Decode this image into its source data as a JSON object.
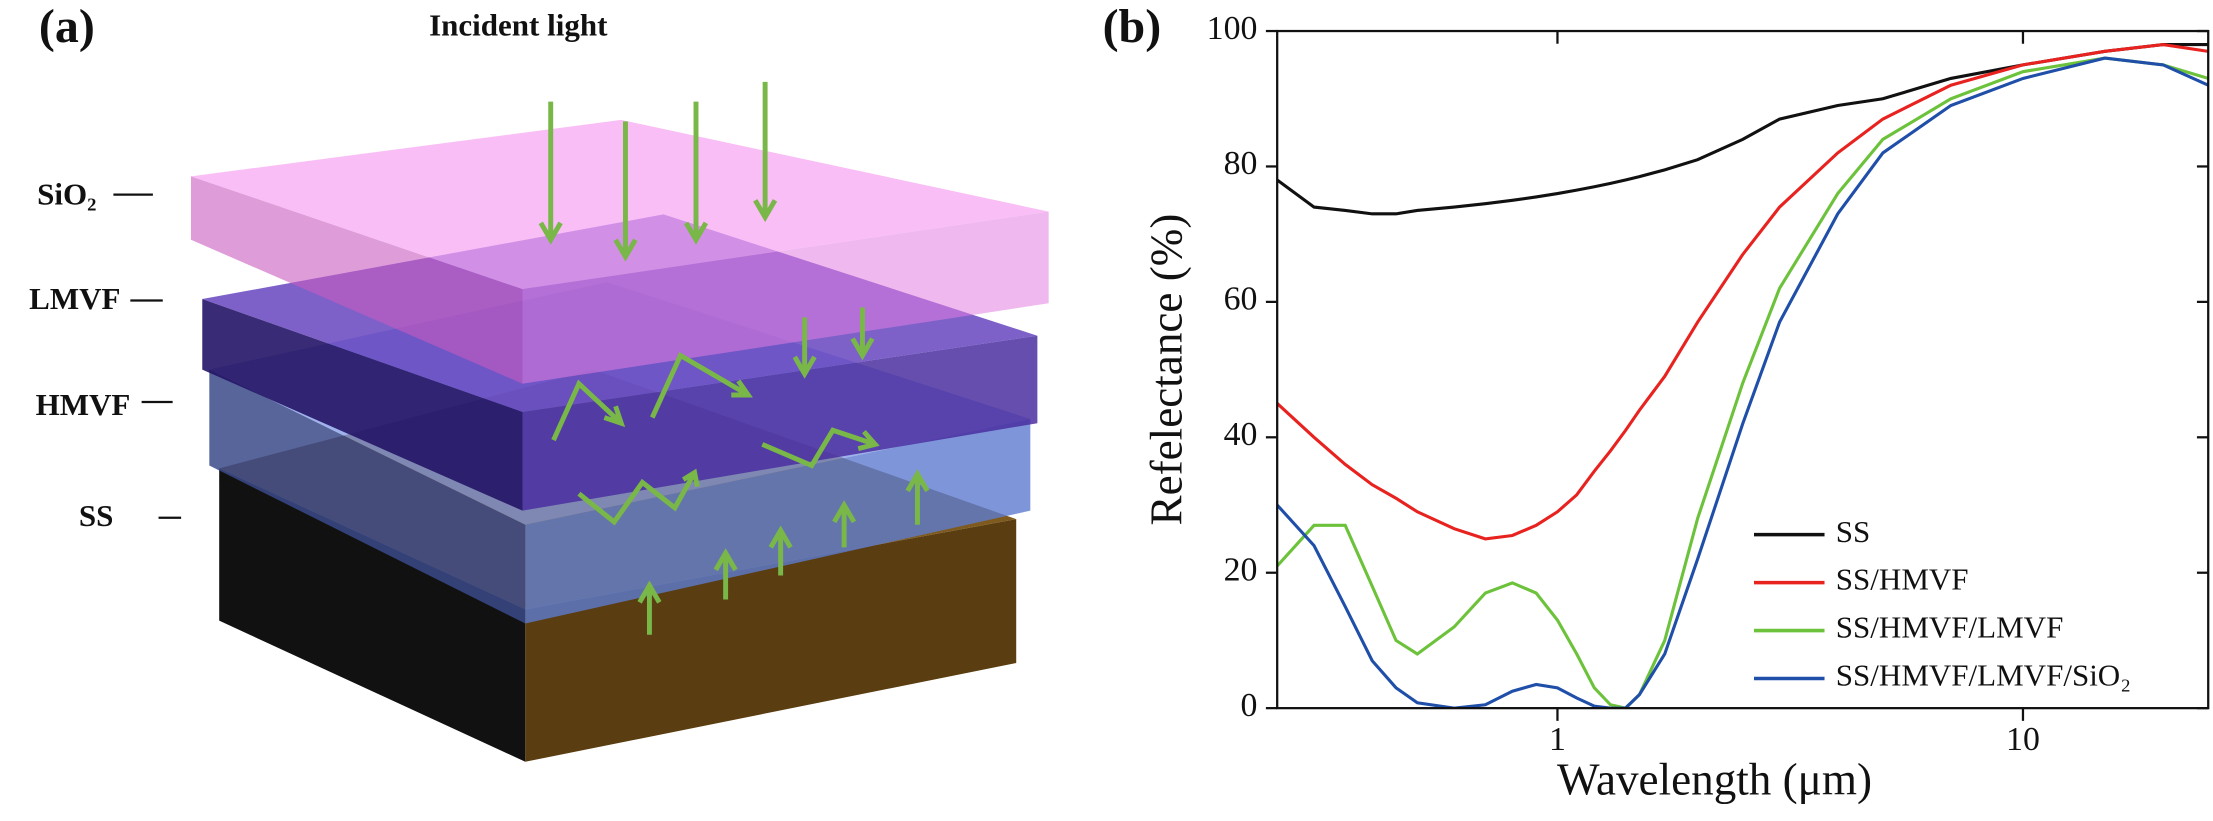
{
  "diagram": {
    "panel_label": "(a)",
    "title": "Incident light",
    "layers": [
      "SiO₂",
      "LMVF",
      "HMVF",
      "SS"
    ]
  },
  "chart_data": {
    "type": "line",
    "panel_label": "(b)",
    "x_label": "Wavelength (μm)",
    "y_label": "Refelectance (%)",
    "x": [
      0.25,
      0.3,
      0.35,
      0.4,
      0.45,
      0.5,
      0.6,
      0.7,
      0.8,
      0.9,
      1,
      1.1,
      1.2,
      1.3,
      1.4,
      1.5,
      1.7,
      2,
      2.5,
      3,
      4,
      5,
      7,
      10,
      15,
      20,
      25
    ],
    "xlim": [
      0.25,
      25
    ],
    "xticks": [
      1,
      10
    ],
    "xscale": "log",
    "ylim": [
      0,
      100
    ],
    "yticks": [
      0,
      20,
      40,
      60,
      80,
      100
    ],
    "legend": "lower right",
    "series": [
      {
        "name": "SS",
        "color": "#111111",
        "values": [
          78,
          74,
          73.5,
          73,
          73,
          73.5,
          74,
          74.5,
          75,
          75.5,
          76,
          76.5,
          77,
          77.5,
          78,
          78.5,
          79.5,
          81,
          84,
          87,
          89,
          90,
          93,
          95,
          97,
          98,
          98
        ]
      },
      {
        "name": "SS/HMVF",
        "color": "#e8231f",
        "values": [
          45,
          40,
          36,
          33,
          31,
          29,
          26.5,
          25,
          25.5,
          27,
          29,
          31.5,
          35,
          38,
          41,
          44,
          49,
          57,
          67,
          74,
          82,
          87,
          92,
          95,
          97,
          98,
          97
        ]
      },
      {
        "name": "SS/HMVF/LMVF",
        "color": "#6cc23a",
        "values": [
          21,
          27,
          27,
          18,
          10,
          8,
          12,
          17,
          18.5,
          17,
          13,
          8,
          3,
          0.5,
          0,
          2,
          10,
          28,
          48,
          62,
          76,
          84,
          90,
          94,
          96,
          95,
          93
        ]
      },
      {
        "name": "SS/HMVF/LMVF/SiO₂",
        "color": "#1f4fa8",
        "values": [
          30,
          24,
          15,
          7,
          3,
          0.8,
          0,
          0.5,
          2.5,
          3.5,
          3,
          1.5,
          0.3,
          0,
          0,
          2,
          8,
          22,
          42,
          57,
          73,
          82,
          89,
          93,
          96,
          95,
          92
        ]
      }
    ]
  }
}
